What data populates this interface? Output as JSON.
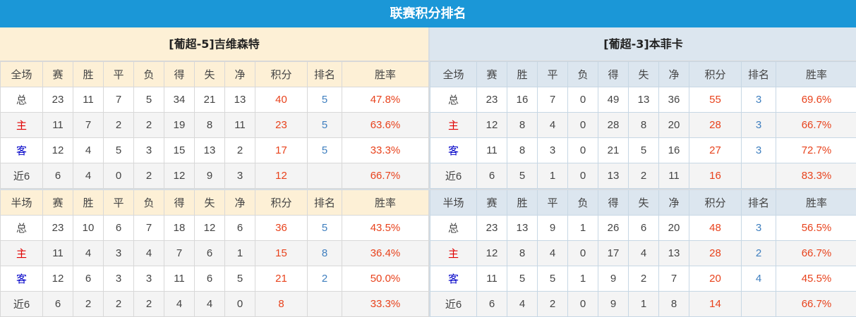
{
  "title": "联赛积分排名",
  "colors": {
    "title_bar": "#1b97d7",
    "points": "#e8421c",
    "rank": "#3f7fbf",
    "home": "#e00000",
    "away": "#0000c8"
  },
  "teams": [
    {
      "name": "[葡超-5]吉维森特",
      "sections": [
        {
          "headers": [
            "全场",
            "赛",
            "胜",
            "平",
            "负",
            "得",
            "失",
            "净",
            "积分",
            "排名",
            "胜率"
          ],
          "rows": [
            [
              "总",
              "23",
              "11",
              "7",
              "5",
              "34",
              "21",
              "13",
              "40",
              "5",
              "47.8%"
            ],
            [
              "主",
              "11",
              "7",
              "2",
              "2",
              "19",
              "8",
              "11",
              "23",
              "5",
              "63.6%"
            ],
            [
              "客",
              "12",
              "4",
              "5",
              "3",
              "15",
              "13",
              "2",
              "17",
              "5",
              "33.3%"
            ],
            [
              "近6",
              "6",
              "4",
              "0",
              "2",
              "12",
              "9",
              "3",
              "12",
              "",
              "66.7%"
            ]
          ]
        },
        {
          "headers": [
            "半场",
            "赛",
            "胜",
            "平",
            "负",
            "得",
            "失",
            "净",
            "积分",
            "排名",
            "胜率"
          ],
          "rows": [
            [
              "总",
              "23",
              "10",
              "6",
              "7",
              "18",
              "12",
              "6",
              "36",
              "5",
              "43.5%"
            ],
            [
              "主",
              "11",
              "4",
              "3",
              "4",
              "7",
              "6",
              "1",
              "15",
              "8",
              "36.4%"
            ],
            [
              "客",
              "12",
              "6",
              "3",
              "3",
              "11",
              "6",
              "5",
              "21",
              "2",
              "50.0%"
            ],
            [
              "近6",
              "6",
              "2",
              "2",
              "2",
              "4",
              "4",
              "0",
              "8",
              "",
              "33.3%"
            ]
          ]
        }
      ]
    },
    {
      "name": "[葡超-3]本菲卡",
      "sections": [
        {
          "headers": [
            "全场",
            "赛",
            "胜",
            "平",
            "负",
            "得",
            "失",
            "净",
            "积分",
            "排名",
            "胜率"
          ],
          "rows": [
            [
              "总",
              "23",
              "16",
              "7",
              "0",
              "49",
              "13",
              "36",
              "55",
              "3",
              "69.6%"
            ],
            [
              "主",
              "12",
              "8",
              "4",
              "0",
              "28",
              "8",
              "20",
              "28",
              "3",
              "66.7%"
            ],
            [
              "客",
              "11",
              "8",
              "3",
              "0",
              "21",
              "5",
              "16",
              "27",
              "3",
              "72.7%"
            ],
            [
              "近6",
              "6",
              "5",
              "1",
              "0",
              "13",
              "2",
              "11",
              "16",
              "",
              "83.3%"
            ]
          ]
        },
        {
          "headers": [
            "半场",
            "赛",
            "胜",
            "平",
            "负",
            "得",
            "失",
            "净",
            "积分",
            "排名",
            "胜率"
          ],
          "rows": [
            [
              "总",
              "23",
              "13",
              "9",
              "1",
              "26",
              "6",
              "20",
              "48",
              "3",
              "56.5%"
            ],
            [
              "主",
              "12",
              "8",
              "4",
              "0",
              "17",
              "4",
              "13",
              "28",
              "2",
              "66.7%"
            ],
            [
              "客",
              "11",
              "5",
              "5",
              "1",
              "9",
              "2",
              "7",
              "20",
              "4",
              "45.5%"
            ],
            [
              "近6",
              "6",
              "4",
              "2",
              "0",
              "9",
              "1",
              "8",
              "14",
              "",
              "66.7%"
            ]
          ]
        }
      ]
    }
  ]
}
